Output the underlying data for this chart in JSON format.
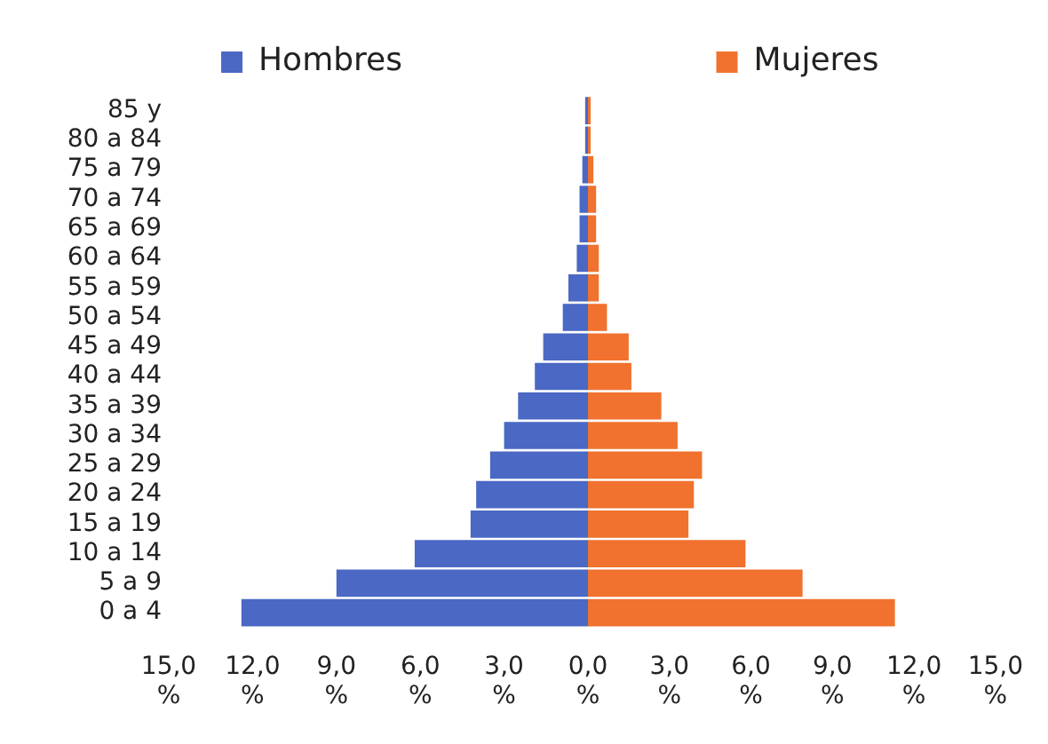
{
  "chart_data": [
    {
      "type": "bar",
      "orientation": "horizontal",
      "legend": "top",
      "grid": false,
      "categories": [
        "85 y",
        "80 a 84",
        "75 a 79",
        "70 a 74",
        "65 a 69",
        "60 a 64",
        "55 a 59",
        "50 a 54",
        "45 a 49",
        "40 a 44",
        "35 a 39",
        "30 a 34",
        "25 a 29",
        "20 a 24",
        "15 a 19",
        "10 a 14",
        "5 a 9",
        "0 a 4"
      ],
      "series": [
        {
          "name": "Hombres",
          "color": "#4a68c4",
          "values": [
            0.1,
            0.1,
            0.2,
            0.3,
            0.3,
            0.4,
            0.7,
            0.9,
            1.6,
            1.9,
            2.5,
            3.0,
            3.5,
            4.0,
            4.2,
            6.2,
            9.0,
            12.4
          ]
        }
      ],
      "xlim": [
        15,
        0
      ],
      "xticks": [
        {
          "value": 15,
          "label": "15,0 %"
        },
        {
          "value": 12,
          "label": "12,0 %"
        },
        {
          "value": 9,
          "label": "9,0 %"
        },
        {
          "value": 6,
          "label": "6,0 %"
        },
        {
          "value": 3,
          "label": "3,0 %"
        },
        {
          "value": 0,
          "label": "0,0 %"
        }
      ]
    },
    {
      "type": "bar",
      "orientation": "horizontal",
      "legend": "top",
      "grid": false,
      "tick_labels": "x",
      "categories": [
        null,
        null,
        null,
        null,
        null,
        null,
        null,
        null,
        null,
        null,
        null,
        null,
        null,
        null,
        null,
        null,
        null,
        null
      ],
      "series": [
        {
          "name": "Mujeres",
          "color": "#f0722e",
          "values": [
            0.1,
            0.1,
            0.2,
            0.3,
            0.3,
            0.4,
            0.4,
            0.7,
            1.5,
            1.6,
            2.7,
            3.3,
            4.2,
            3.9,
            3.7,
            5.8,
            7.9,
            11.3
          ]
        }
      ],
      "xlim": [
        0,
        15
      ],
      "xticks": [
        {
          "value": 0,
          "label": null
        },
        {
          "value": 3,
          "label": "3,0 %"
        },
        {
          "value": 6,
          "label": "6,0 %"
        },
        {
          "value": 9,
          "label": "9,0 %"
        },
        {
          "value": 12,
          "label": "12,0 %"
        },
        {
          "value": 15,
          "label": "15,0 %"
        }
      ]
    }
  ]
}
